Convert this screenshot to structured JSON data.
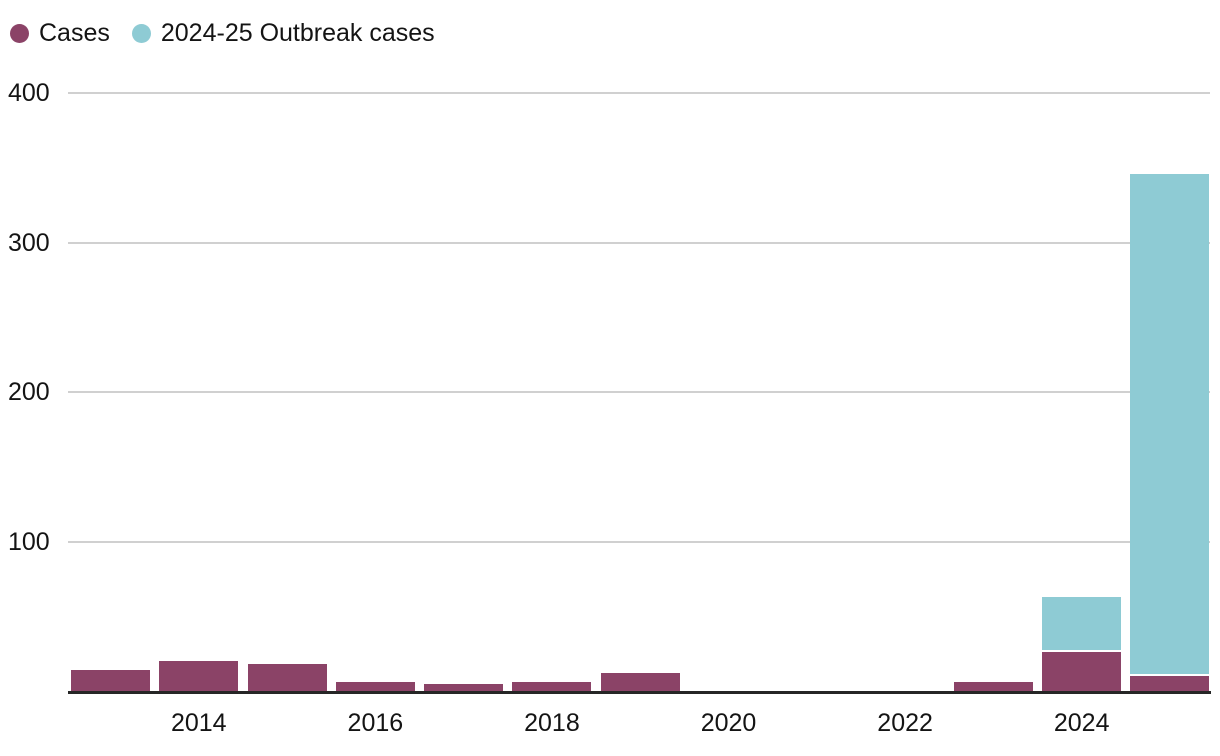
{
  "legend": {
    "items": [
      {
        "label": "Cases",
        "color": "#8B4367"
      },
      {
        "label": "2024-25 Outbreak cases",
        "color": "#8ECBD4"
      }
    ]
  },
  "colors": {
    "cases_maroon": "#8B4367",
    "outbreak_teal": "#8ECBD4",
    "gridline": "#d0d0d0",
    "axis_line": "#262626",
    "text": "#141414",
    "background": "#ffffff",
    "stack_separator": "#ffffff"
  },
  "chart_data": {
    "type": "bar",
    "stacked": true,
    "title": "",
    "xlabel": "",
    "ylabel": "",
    "x": [
      2013,
      2014,
      2015,
      2016,
      2017,
      2018,
      2019,
      2020,
      2021,
      2022,
      2023,
      2024,
      2025
    ],
    "series": [
      {
        "name": "Cases",
        "color": "#8B4367",
        "values": [
          14,
          20,
          18,
          6,
          5,
          6,
          12,
          0,
          0,
          0,
          6,
          26,
          10
        ]
      },
      {
        "name": "2024-25 Outbreak cases",
        "color": "#8ECBD4",
        "values": [
          0,
          0,
          0,
          0,
          0,
          0,
          0,
          0,
          0,
          0,
          0,
          37,
          336
        ]
      }
    ],
    "ylim": [
      0,
      400
    ],
    "y_ticks": [
      100,
      200,
      300,
      400
    ],
    "x_tick_labels": [
      "2014",
      "2016",
      "2018",
      "2020",
      "2022",
      "2024"
    ],
    "x_tick_years": [
      2014,
      2016,
      2018,
      2020,
      2022,
      2024
    ],
    "grid": true,
    "legend_position": "top-left"
  }
}
